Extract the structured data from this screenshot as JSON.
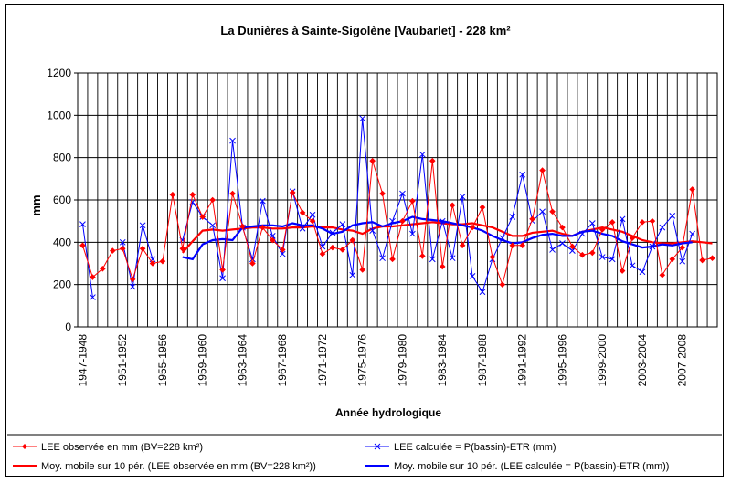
{
  "chart_data": {
    "type": "line",
    "title": "La Dunières à Sainte-Sigolène [Vaubarlet] - 228 km²",
    "xlabel": "Année hydrologique",
    "ylabel": "mm",
    "ylim": [
      0,
      1200
    ],
    "yticks": [
      0,
      200,
      400,
      600,
      800,
      1000,
      1200
    ],
    "grid": true,
    "legend_position": "bottom",
    "start_year": 1947,
    "x_tick_labels": [
      "1947-1948",
      "1951-1952",
      "1955-1956",
      "1959-1960",
      "1963-1964",
      "1967-1968",
      "1971-1972",
      "1975-1976",
      "1979-1980",
      "1983-1984",
      "1987-1988",
      "1991-1992",
      "1995-1996",
      "1999-2000",
      "2003-2004",
      "2007-2008"
    ],
    "series": [
      {
        "name": "LEE observée en mm (BV=228 km²)",
        "color": "#ff0000",
        "marker": "diamond",
        "values": [
          385,
          235,
          275,
          360,
          370,
          225,
          370,
          300,
          310,
          625,
          370,
          625,
          520,
          600,
          270,
          630,
          475,
          300,
          470,
          410,
          365,
          635,
          540,
          500,
          345,
          375,
          365,
          410,
          270,
          785,
          630,
          320,
          500,
          595,
          335,
          785,
          285,
          575,
          385,
          470,
          565,
          330,
          200,
          385,
          385,
          510,
          740,
          545,
          470,
          380,
          340,
          350,
          460,
          495,
          265,
          420,
          495,
          500,
          245,
          320,
          375,
          650,
          315,
          325
        ]
      },
      {
        "name": "LEE calculée = P(bassin)-ETR (mm)",
        "color": "#0000ff",
        "marker": "x",
        "values": [
          485,
          140,
          null,
          null,
          400,
          190,
          480,
          320,
          null,
          null,
          410,
          590,
          520,
          480,
          230,
          880,
          470,
          320,
          595,
          430,
          345,
          640,
          465,
          530,
          380,
          445,
          485,
          245,
          985,
          455,
          325,
          500,
          630,
          440,
          815,
          320,
          500,
          325,
          615,
          240,
          165,
          320,
          420,
          520,
          720,
          500,
          545,
          365,
          395,
          360,
          440,
          490,
          330,
          320,
          510,
          290,
          260,
          380,
          470,
          525,
          310,
          440
        ]
      },
      {
        "name": "Moy. mobile sur 10 pér. (LEE observée en mm (BV=228 km²))",
        "color": "#ff0000",
        "marker": "none",
        "values": [
          null,
          null,
          null,
          null,
          null,
          null,
          null,
          null,
          null,
          null,
          350,
          405,
          455,
          460,
          455,
          460,
          465,
          470,
          470,
          465,
          465,
          470,
          470,
          475,
          470,
          470,
          460,
          455,
          440,
          465,
          475,
          475,
          480,
          485,
          490,
          495,
          490,
          485,
          485,
          490,
          480,
          470,
          450,
          430,
          430,
          445,
          450,
          455,
          440,
          430,
          450,
          460,
          470,
          460,
          450,
          430,
          410,
          400,
          395,
          395,
          400,
          405,
          400,
          395
        ]
      },
      {
        "name": "Moy. mobile sur 10 pér. (LEE calculée = P(bassin)-ETR (mm))",
        "color": "#0000ff",
        "marker": "none",
        "values": [
          null,
          null,
          null,
          null,
          null,
          null,
          null,
          null,
          null,
          null,
          330,
          320,
          390,
          410,
          415,
          410,
          470,
          475,
          480,
          480,
          475,
          490,
          480,
          480,
          465,
          440,
          450,
          480,
          490,
          495,
          475,
          490,
          500,
          520,
          510,
          505,
          500,
          490,
          480,
          470,
          455,
          430,
          410,
          395,
          400,
          420,
          435,
          440,
          430,
          430,
          450,
          455,
          440,
          430,
          405,
          390,
          375,
          380,
          390,
          385,
          395,
          400
        ]
      }
    ]
  }
}
